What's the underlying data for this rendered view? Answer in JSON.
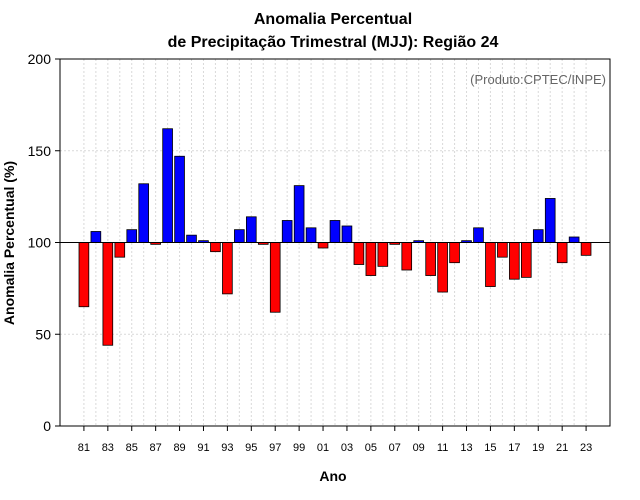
{
  "chart_data": {
    "type": "bar",
    "title": "Anomalia Percentual",
    "subtitle": "de Precipitação Trimestral (MJJ): Região 24",
    "xlabel": "Ano",
    "ylabel": "Anomalia Percentual (%)",
    "credit": "(Produto:CPTEC/INPE)",
    "ylim": [
      0,
      200
    ],
    "yticks": [
      0,
      50,
      100,
      150,
      200
    ],
    "baseline": 100,
    "grid": true,
    "colors": {
      "above": "#0000ff",
      "below": "#ff0000"
    },
    "tick_labels": [
      "81",
      "83",
      "85",
      "87",
      "89",
      "91",
      "93",
      "95",
      "97",
      "99",
      "01",
      "03",
      "05",
      "07",
      "09",
      "11",
      "13",
      "15",
      "17",
      "19",
      "21",
      "23"
    ],
    "categories": [
      "1981",
      "1982",
      "1983",
      "1984",
      "1985",
      "1986",
      "1987",
      "1988",
      "1989",
      "1990",
      "1991",
      "1992",
      "1993",
      "1994",
      "1995",
      "1996",
      "1997",
      "1998",
      "1999",
      "2000",
      "2001",
      "2002",
      "2003",
      "2004",
      "2005",
      "2006",
      "2007",
      "2008",
      "2009",
      "2010",
      "2011",
      "2012",
      "2013",
      "2014",
      "2015",
      "2016",
      "2017",
      "2018",
      "2019",
      "2020",
      "2021",
      "2022",
      "2023"
    ],
    "values": [
      65,
      106,
      44,
      92,
      107,
      132,
      99,
      162,
      147,
      104,
      101,
      95,
      72,
      107,
      114,
      99,
      62,
      112,
      131,
      108,
      97,
      112,
      109,
      88,
      82,
      87,
      99,
      85,
      101,
      82,
      73,
      89,
      101,
      108,
      76,
      92,
      80,
      81,
      107,
      124,
      89,
      103,
      93
    ]
  }
}
